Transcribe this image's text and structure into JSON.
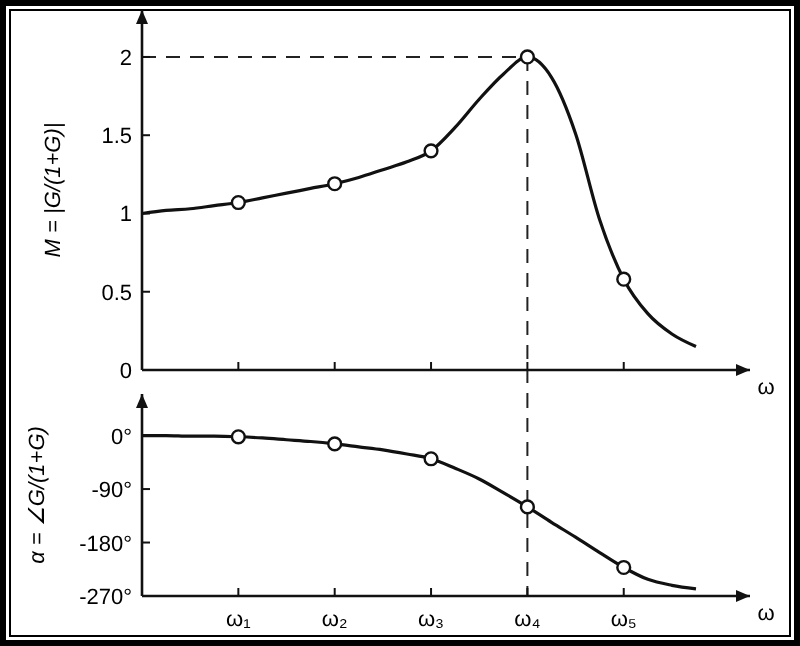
{
  "chart_data": [
    {
      "type": "line",
      "ylabel": "M = |G/(1+G)|",
      "xlabel": "ω",
      "ylim": [
        0,
        2.3
      ],
      "yticks": [
        0,
        0.5,
        1,
        1.5,
        2
      ],
      "tick_labels": "y",
      "categories": [
        null,
        null,
        null,
        null,
        "ω₁",
        null,
        null,
        null,
        "ω₂",
        null,
        null,
        null,
        "ω₃",
        null,
        null,
        null,
        "ω₄",
        null,
        null,
        null,
        "ω₅",
        null,
        null,
        null
      ],
      "series": [
        {
          "type": "line",
          "color": "#111111",
          "marker": "none",
          "values": [
            1.0,
            1.02,
            1.03,
            1.05,
            1.07,
            1.1,
            1.13,
            1.16,
            1.19,
            1.23,
            1.28,
            1.33,
            1.4,
            1.55,
            1.73,
            1.89,
            2.0,
            1.87,
            1.51,
            0.96,
            0.58,
            0.36,
            0.23,
            0.15
          ]
        },
        {
          "type": "scatter",
          "color": "#111111",
          "marker": "circle",
          "values": [
            null,
            null,
            null,
            null,
            1.07,
            null,
            null,
            null,
            1.19,
            null,
            null,
            null,
            1.4,
            null,
            null,
            null,
            2.0,
            null,
            null,
            null,
            0.58,
            null,
            null,
            null
          ]
        }
      ],
      "ref_lines": [
        {
          "axis": "y",
          "value": 2,
          "line_style": "dashed"
        },
        {
          "axis": "x",
          "value": "ω₄",
          "line_style": "dashed"
        }
      ]
    },
    {
      "type": "line",
      "ylabel": "α = ∠G/(1+G)",
      "xlabel": "ω",
      "ylim": [
        -270,
        70
      ],
      "yticks": [
        {
          "value": 0,
          "label": "0°"
        },
        {
          "value": -90,
          "label": "-90°"
        },
        {
          "value": -180,
          "label": "-180°"
        },
        {
          "value": -270,
          "label": "-270°"
        }
      ],
      "categories": [
        null,
        null,
        null,
        null,
        "ω₁",
        null,
        null,
        null,
        "ω₂",
        null,
        null,
        null,
        "ω₃",
        null,
        null,
        null,
        "ω₄",
        null,
        null,
        null,
        "ω₅",
        null,
        null,
        null
      ],
      "series": [
        {
          "type": "line",
          "color": "#111111",
          "marker": "none",
          "values": [
            0,
            0,
            -1,
            -1,
            -2,
            -4,
            -7,
            -10,
            -14,
            -19,
            -24,
            -31,
            -39,
            -55,
            -73,
            -96,
            -120,
            -146,
            -171,
            -197,
            -222,
            -242,
            -252,
            -258
          ]
        },
        {
          "type": "scatter",
          "color": "#111111",
          "marker": "circle",
          "values": [
            null,
            null,
            null,
            null,
            -2,
            null,
            null,
            null,
            -14,
            null,
            null,
            null,
            -39,
            null,
            null,
            null,
            -120,
            null,
            null,
            null,
            -222,
            null,
            null,
            null
          ]
        }
      ],
      "ref_lines": [
        {
          "axis": "x",
          "value": "ω₄",
          "line_style": "dashed"
        }
      ]
    }
  ]
}
